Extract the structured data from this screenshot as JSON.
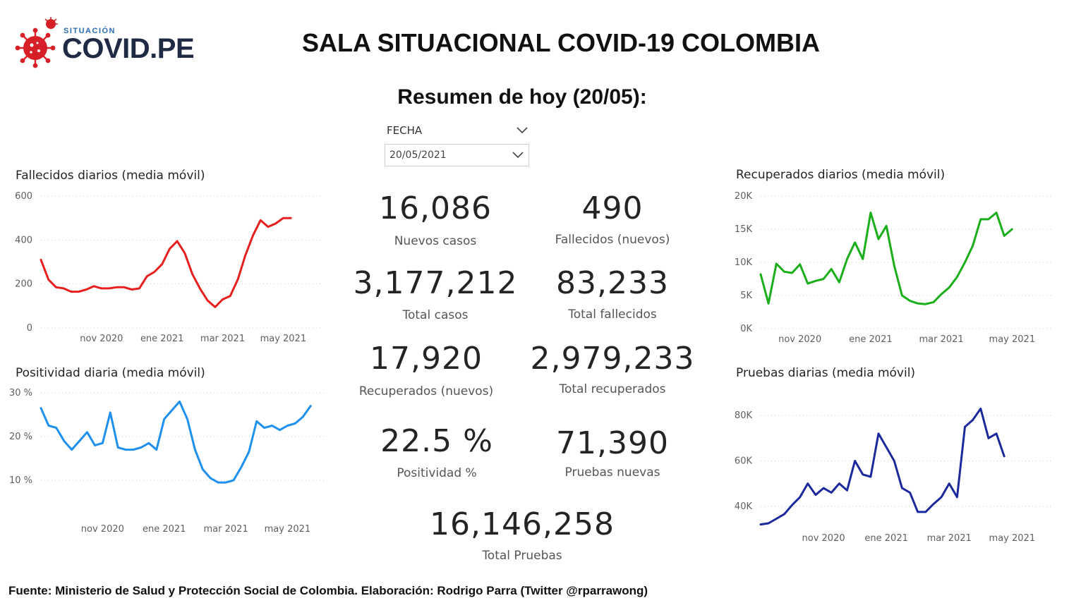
{
  "header": {
    "logo_small": "SITUACIÓN",
    "logo_big": "COVID.PE",
    "title": "SALA SITUACIONAL COVID-19 COLOMBIA",
    "summary_title": "Resumen de hoy (20/05):"
  },
  "filter": {
    "label": "FECHA",
    "selected": "20/05/2021"
  },
  "kpis": {
    "nuevos_casos": {
      "value": "16,086",
      "label": "Nuevos casos"
    },
    "fallecidos_nuevos": {
      "value": "490",
      "label": "Fallecidos (nuevos)"
    },
    "total_casos": {
      "value": "3,177,212",
      "label": "Total casos"
    },
    "total_fallecidos": {
      "value": "83,233",
      "label": "Total fallecidos"
    },
    "recuperados_nuevos": {
      "value": "17,920",
      "label": "Recuperados (nuevos)"
    },
    "total_recuperados": {
      "value": "2,979,233",
      "label": "Total recuperados"
    },
    "positividad": {
      "value": "22.5 %",
      "label": "Positividad %"
    },
    "pruebas_nuevas": {
      "value": "71,390",
      "label": "Pruebas nuevas"
    },
    "total_pruebas": {
      "value": "16,146,258",
      "label": "Total Pruebas"
    }
  },
  "footer": "Fuente: Ministerio de Salud y Protección Social de Colombia. Elaboración: Rodrigo Parra (Twitter @rparrawong)",
  "chart_data": [
    {
      "id": "fallecidos",
      "type": "line",
      "title": "Fallecidos diarios (media móvil)",
      "color": "#e81f1f",
      "ylim": [
        0,
        600
      ],
      "yticks": [
        0,
        200,
        400,
        600
      ],
      "ytick_labels": [
        "0",
        "200",
        "400",
        "600"
      ],
      "xlim": [
        0,
        37
      ],
      "xtick_pos": [
        8,
        16,
        24,
        32
      ],
      "xtick_labels": [
        "nov 2020",
        "ene 2021",
        "mar 2021",
        "may 2021"
      ],
      "grid": true,
      "x": [
        0,
        1,
        2,
        3,
        4,
        5,
        6,
        7,
        8,
        9,
        10,
        11,
        12,
        13,
        14,
        15,
        16,
        17,
        18,
        19,
        20,
        21,
        22,
        23,
        24,
        25,
        26,
        27,
        28,
        29,
        30,
        31,
        32,
        33,
        34,
        35,
        36
      ],
      "y": [
        310,
        220,
        185,
        180,
        165,
        165,
        175,
        190,
        180,
        180,
        185,
        185,
        175,
        180,
        235,
        255,
        290,
        360,
        395,
        340,
        245,
        180,
        125,
        95,
        130,
        145,
        220,
        330,
        420,
        490,
        460,
        475,
        500,
        500,
        null,
        null,
        null
      ]
    },
    {
      "id": "positividad",
      "type": "line",
      "title": "Positividad diaria (media móvil)",
      "color": "#1e90ef",
      "ylim": [
        5,
        30
      ],
      "yticks": [
        10,
        20,
        30
      ],
      "ytick_labels": [
        "10 %",
        "20 %",
        "30 %"
      ],
      "xlim": [
        0,
        37
      ],
      "xtick_pos": [
        8,
        16,
        24,
        32
      ],
      "xtick_labels": [
        "nov 2020",
        "ene 2021",
        "mar 2021",
        "may 2021"
      ],
      "grid": true,
      "x": [
        0,
        1,
        2,
        3,
        4,
        5,
        6,
        7,
        8,
        9,
        10,
        11,
        12,
        13,
        14,
        15,
        16,
        17,
        18,
        19,
        20,
        21,
        22,
        23,
        24,
        25,
        26,
        27,
        28,
        29,
        30,
        31,
        32,
        33,
        34,
        35,
        36
      ],
      "y": [
        26.5,
        22.5,
        22,
        19,
        17,
        19,
        21,
        18,
        18.5,
        25.5,
        17.5,
        17,
        17,
        17.5,
        18.5,
        17,
        24,
        26,
        28,
        24,
        17,
        12.5,
        10.5,
        9.5,
        9.5,
        10,
        13,
        16.5,
        23.5,
        22,
        22.5,
        21.5,
        22.5,
        23,
        24.5,
        27,
        null
      ]
    },
    {
      "id": "recuperados",
      "type": "line",
      "title": "Recuperados diarios (media móvil)",
      "color": "#1aaf1a",
      "ylim": [
        0,
        20000
      ],
      "yticks": [
        0,
        5000,
        10000,
        15000,
        20000
      ],
      "ytick_labels": [
        "0K",
        "5K",
        "10K",
        "15K",
        "20K"
      ],
      "xlim": [
        0,
        37
      ],
      "xtick_pos": [
        5,
        14,
        23,
        32
      ],
      "xtick_labels": [
        "nov 2020",
        "ene 2021",
        "mar 2021",
        "may 2021"
      ],
      "grid": true,
      "x": [
        0,
        1,
        2,
        3,
        4,
        5,
        6,
        7,
        8,
        9,
        10,
        11,
        12,
        13,
        14,
        15,
        16,
        17,
        18,
        19,
        20,
        21,
        22,
        23,
        24,
        25,
        26,
        27,
        28,
        29,
        30,
        31,
        32,
        33,
        34,
        35,
        36
      ],
      "y": [
        8200,
        3800,
        9800,
        8600,
        8400,
        9700,
        6800,
        7200,
        7500,
        9000,
        7000,
        10500,
        13000,
        10500,
        17500,
        13500,
        15500,
        9500,
        5000,
        4200,
        3800,
        3700,
        4000,
        5200,
        6200,
        7800,
        10000,
        12500,
        16500,
        16500,
        17500,
        14000,
        15000,
        null,
        null,
        null,
        null
      ]
    },
    {
      "id": "pruebas",
      "type": "line",
      "title": "Pruebas diarias (media móvil)",
      "color": "#1a2a9c",
      "ylim": [
        30000,
        85000
      ],
      "yticks": [
        40000,
        60000,
        80000
      ],
      "ytick_labels": [
        "40K",
        "60K",
        "80K"
      ],
      "xlim": [
        0,
        37
      ],
      "xtick_pos": [
        8,
        16,
        24,
        32
      ],
      "xtick_labels": [
        "nov 2020",
        "ene 2021",
        "mar 2021",
        "may 2021"
      ],
      "grid": true,
      "x": [
        0,
        1,
        2,
        3,
        4,
        5,
        6,
        7,
        8,
        9,
        10,
        11,
        12,
        13,
        14,
        15,
        16,
        17,
        18,
        19,
        20,
        21,
        22,
        23,
        24,
        25,
        26,
        27,
        28,
        29,
        30,
        31,
        32,
        33,
        34,
        35,
        36
      ],
      "y": [
        32000,
        32500,
        34500,
        36500,
        40500,
        44000,
        50000,
        45000,
        48000,
        46000,
        50000,
        47000,
        60000,
        54000,
        53000,
        72000,
        66000,
        60000,
        48000,
        46000,
        37500,
        37500,
        41000,
        44000,
        50000,
        44000,
        75000,
        78000,
        83000,
        70000,
        72000,
        62000,
        null,
        null,
        null,
        null,
        null
      ]
    }
  ]
}
